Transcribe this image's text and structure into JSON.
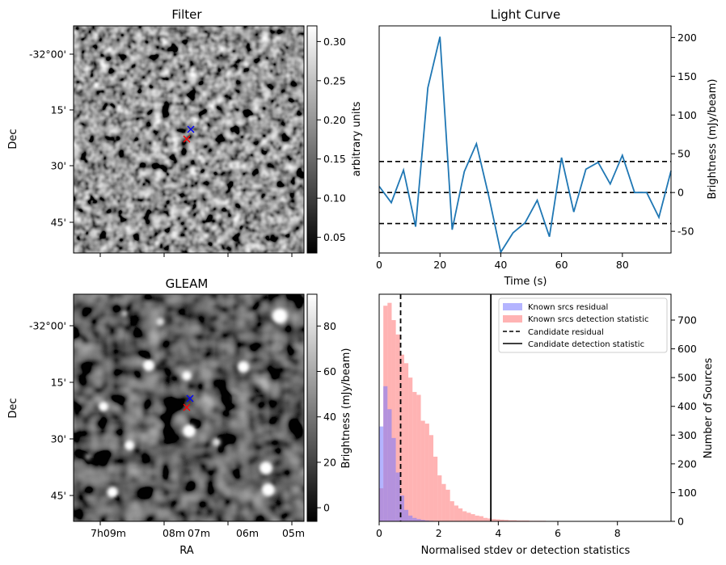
{
  "chart_data": [
    {
      "type": "heatmap",
      "title": "Filter",
      "xlabel": "",
      "ylabel": "Dec",
      "y_ticks": [
        "-32°00'",
        "15'",
        "30'",
        "45'"
      ],
      "colorbar": {
        "label": "arbitrary units",
        "range": [
          0.03,
          0.32
        ],
        "ticks": [
          "0.05",
          "0.10",
          "0.15",
          "0.20",
          "0.25",
          "0.30"
        ]
      },
      "markers": [
        {
          "symbol": "x",
          "color": "#0000ff"
        },
        {
          "symbol": "x",
          "color": "#ff0000"
        }
      ],
      "colors": {
        "cmap": "gray"
      }
    },
    {
      "type": "line",
      "title": "Light Curve",
      "xlabel": "Time (s)",
      "ylabel": "Brightness (mJy/beam)",
      "xlim": [
        0,
        96
      ],
      "ylim": [
        -78,
        215
      ],
      "x_ticks": [
        "0",
        "20",
        "40",
        "60",
        "80"
      ],
      "y_ticks": [
        "-50",
        "0",
        "50",
        "100",
        "150",
        "200"
      ],
      "series": [
        {
          "x": [
            0,
            4,
            8,
            12,
            16,
            20,
            24,
            28,
            32,
            36,
            40,
            44,
            48,
            52,
            56,
            60,
            64,
            68,
            72,
            76,
            80,
            84,
            88,
            92,
            96
          ],
          "values": [
            8,
            -13,
            29,
            -44,
            135,
            201,
            -48,
            27,
            63,
            -4,
            -77,
            -52,
            -39,
            -10,
            -57,
            45,
            -25,
            30,
            39,
            11,
            48,
            0,
            0,
            -32,
            28
          ],
          "color": "#1f77b4"
        }
      ],
      "hlines": [
        {
          "y": 40,
          "style": "dashed"
        },
        {
          "y": 0,
          "style": "dashed"
        },
        {
          "y": -40,
          "style": "dashed"
        }
      ]
    },
    {
      "type": "heatmap",
      "title": "GLEAM",
      "xlabel": "RA",
      "ylabel": "Dec",
      "x_ticks": [
        "7h09m",
        "08m",
        "07m",
        "06m",
        "05m"
      ],
      "y_ticks": [
        "-32°00'",
        "15'",
        "30'",
        "45'"
      ],
      "colorbar": {
        "label": "Brightness (mJy/beam)",
        "range": [
          -6,
          94
        ],
        "ticks": [
          "0",
          "20",
          "40",
          "60",
          "80"
        ]
      },
      "markers": [
        {
          "symbol": "x",
          "color": "#0000ff"
        },
        {
          "symbol": "x",
          "color": "#ff0000"
        }
      ],
      "colors": {
        "cmap": "gray"
      }
    },
    {
      "type": "bar",
      "title": "",
      "xlabel": "Normalised stdev or detection statistics",
      "ylabel": "Number of Sources",
      "xlim": [
        0,
        9.8
      ],
      "ylim": [
        0,
        790
      ],
      "x_ticks": [
        "0",
        "2",
        "4",
        "6",
        "8"
      ],
      "y_ticks": [
        "0",
        "100",
        "200",
        "300",
        "400",
        "500",
        "600",
        "700"
      ],
      "bin_start": 0,
      "bin_width": 0.14,
      "series": [
        {
          "name": "Known srcs residual",
          "color": "#7777ff",
          "values": [
            330,
            470,
            390,
            290,
            170,
            90,
            40,
            20,
            12,
            8,
            5,
            3,
            2,
            1,
            1,
            1,
            0,
            0,
            0,
            0,
            0,
            0,
            0,
            0,
            0,
            0,
            0,
            0,
            0,
            0,
            0,
            0,
            0,
            0,
            0,
            0,
            0,
            0,
            0,
            0,
            0,
            0,
            0,
            0,
            0,
            0,
            0,
            0,
            0,
            0,
            0,
            0,
            0,
            0,
            0,
            0,
            0,
            0,
            0,
            0,
            0,
            0,
            0,
            0,
            0,
            0,
            0,
            0,
            0,
            0
          ]
        },
        {
          "name": "Known srcs detection statistic",
          "color": "#ff8080",
          "values": [
            115,
            750,
            760,
            700,
            650,
            580,
            550,
            500,
            450,
            440,
            350,
            340,
            300,
            225,
            160,
            130,
            110,
            70,
            55,
            45,
            35,
            30,
            25,
            20,
            18,
            12,
            10,
            8,
            7,
            6,
            5,
            4,
            4,
            3,
            3,
            3,
            2,
            2,
            2,
            2,
            1,
            1,
            1,
            1,
            1,
            1,
            1,
            1,
            1,
            1,
            1,
            1,
            1,
            1,
            1,
            1,
            1,
            1,
            1,
            1,
            1,
            1,
            1,
            1,
            1,
            1,
            1,
            1,
            1,
            1
          ]
        }
      ],
      "vlines": [
        {
          "name": "Candidate residual",
          "x": 0.72,
          "style": "dashed"
        },
        {
          "name": "Candidate detection statistic",
          "x": 3.75,
          "style": "solid"
        }
      ],
      "legend": "top-right"
    }
  ]
}
